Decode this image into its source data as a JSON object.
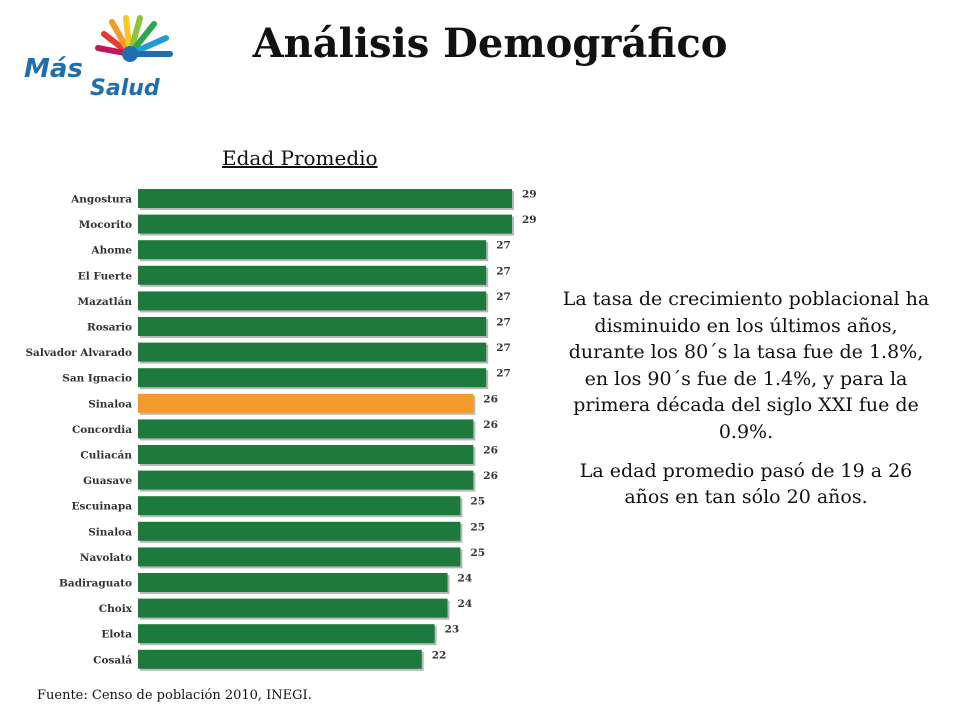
{
  "logo": {
    "line1": "Más",
    "line2": "Salud"
  },
  "title": "Análisis Demográfico",
  "description": [
    "La tasa de crecimiento poblacional ha disminuido en los últimos años, durante los 80´s la tasa fue de 1.8%, en los 90´s fue de 1.4%, y para la primera década del siglo XXI fue de 0.9%.",
    "La edad promedio pasó de 19 a 26 años en tan sólo 20 años."
  ],
  "source": "Fuente: Censo de población 2010, INEGI.",
  "colors": {
    "bar": "#1e7a3c",
    "highlight": "#f39a2b"
  },
  "chart_data": {
    "type": "bar",
    "orientation": "horizontal",
    "title": "Edad Promedio",
    "categories": [
      "Angostura",
      "Mocorito",
      "Ahome",
      "El Fuerte",
      "Mazatlán",
      "Rosario",
      "Salvador Alvarado",
      "San Ignacio",
      "Sinaloa",
      "Concordia",
      "Culiacán",
      "Guasave",
      "Escuinapa",
      "Sinaloa",
      "Navolato",
      "Badiraguato",
      "Choix",
      "Elota",
      "Cosalá"
    ],
    "values": [
      29,
      29,
      27,
      27,
      27,
      27,
      27,
      27,
      26,
      26,
      26,
      26,
      25,
      25,
      25,
      24,
      24,
      23,
      22
    ],
    "highlight_index": 8,
    "xlim": [
      0,
      29
    ],
    "grid": false,
    "legend": "none"
  }
}
